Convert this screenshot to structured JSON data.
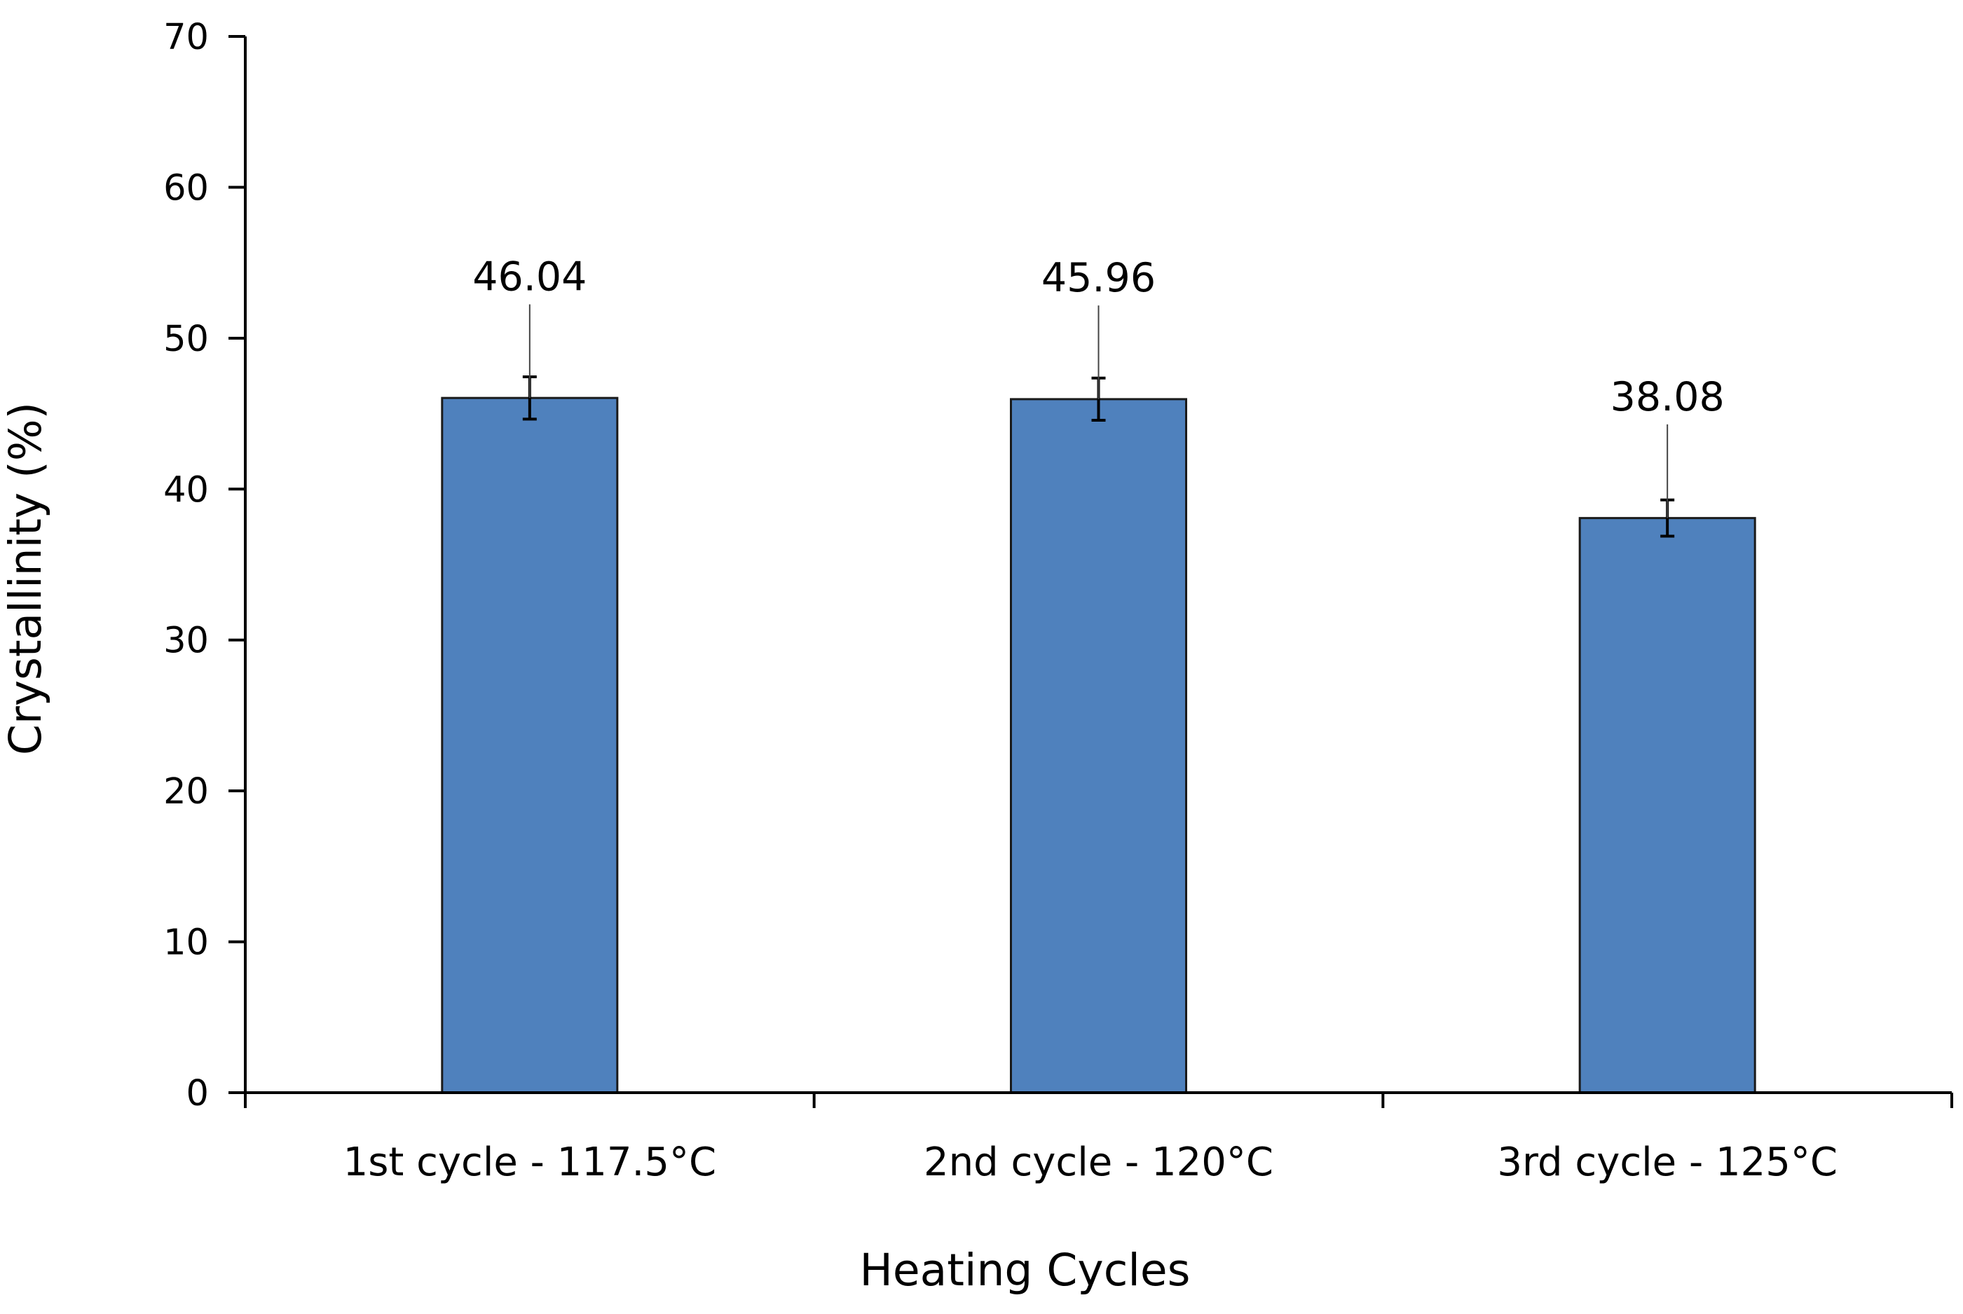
{
  "chart_data": {
    "type": "bar",
    "title": "",
    "xlabel": "Heating Cycles",
    "ylabel": "Crystallinity (%)",
    "ylim": [
      0,
      70
    ],
    "yticks": [
      0,
      10,
      20,
      30,
      40,
      50,
      60,
      70
    ],
    "categories": [
      "1st cycle - 117.5°C",
      "2nd cycle - 120°C",
      "3rd cycle - 125°C"
    ],
    "values": [
      46.04,
      45.96,
      38.08
    ],
    "value_labels": [
      "46.04",
      "45.96",
      "38.08"
    ],
    "error": [
      1.4,
      1.4,
      1.2
    ],
    "grid": false,
    "colors": {
      "bar_fill": "#4f81bd",
      "bar_edge": "#1a1a1a",
      "axis": "#000000"
    }
  }
}
